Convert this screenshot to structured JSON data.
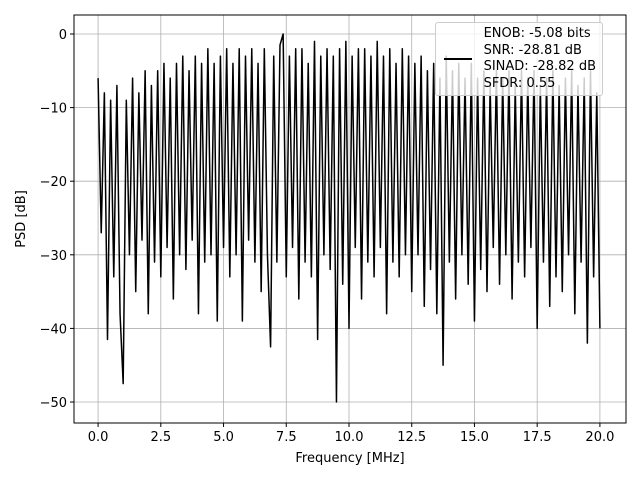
{
  "chart_data": {
    "type": "line",
    "xlabel": "Frequency [MHz]",
    "ylabel": "PSD [dB]",
    "x": [
      0,
      0.125,
      0.25,
      0.375,
      0.5,
      0.625,
      0.75,
      0.875,
      1,
      1.125,
      1.25,
      1.375,
      1.5,
      1.625,
      1.75,
      1.875,
      2,
      2.125,
      2.25,
      2.375,
      2.5,
      2.625,
      2.75,
      2.875,
      3,
      3.125,
      3.25,
      3.375,
      3.5,
      3.625,
      3.75,
      3.875,
      4,
      4.125,
      4.25,
      4.375,
      4.5,
      4.625,
      4.75,
      4.875,
      5,
      5.125,
      5.25,
      5.375,
      5.5,
      5.625,
      5.75,
      5.875,
      6,
      6.125,
      6.25,
      6.375,
      6.5,
      6.625,
      6.75,
      6.875,
      7,
      7.125,
      7.25,
      7.375,
      7.5,
      7.625,
      7.75,
      7.875,
      8,
      8.125,
      8.25,
      8.375,
      8.5,
      8.625,
      8.75,
      8.875,
      9,
      9.125,
      9.25,
      9.375,
      9.5,
      9.625,
      9.75,
      9.875,
      10,
      10.125,
      10.25,
      10.375,
      10.5,
      10.625,
      10.75,
      10.875,
      11,
      11.125,
      11.25,
      11.375,
      11.5,
      11.625,
      11.75,
      11.875,
      12,
      12.125,
      12.25,
      12.375,
      12.5,
      12.625,
      12.75,
      12.875,
      13,
      13.125,
      13.25,
      13.375,
      13.5,
      13.625,
      13.75,
      13.875,
      14,
      14.125,
      14.25,
      14.375,
      14.5,
      14.625,
      14.75,
      14.875,
      15,
      15.125,
      15.25,
      15.375,
      15.5,
      15.625,
      15.75,
      15.875,
      16,
      16.125,
      16.25,
      16.375,
      16.5,
      16.625,
      16.75,
      16.875,
      17,
      17.125,
      17.25,
      17.375,
      17.5,
      17.625,
      17.75,
      17.875,
      18,
      18.125,
      18.25,
      18.375,
      18.5,
      18.625,
      18.75,
      18.875,
      19,
      19.125,
      19.25,
      19.375,
      19.5,
      19.625,
      19.75,
      19.875,
      20
    ],
    "series": [
      {
        "name": "ENOB: -5.08 bits\nSNR: -28.81 dB\nSINAD: -28.82 dB\nSFDR: 0.55",
        "color": "#000000",
        "values": [
          -6,
          -27,
          -8,
          -41.5,
          -9,
          -33,
          -7,
          -38,
          -47.5,
          -9,
          -30,
          -6,
          -35,
          -8,
          -28,
          -5,
          -38,
          -7,
          -31,
          -5,
          -33,
          -4,
          -29,
          -6,
          -36,
          -4,
          -30,
          -3,
          -32,
          -5,
          -28,
          -3,
          -38,
          -4,
          -31,
          -2,
          -30,
          -4,
          -39,
          -3,
          -29,
          -2,
          -33,
          -4,
          -30,
          -2,
          -39,
          -3,
          -28,
          -2,
          -31,
          -4,
          -35,
          -2,
          -30,
          -42.5,
          -3,
          -31,
          -1.5,
          0,
          -33,
          -3,
          -29,
          -2,
          -36,
          -2,
          -31,
          -4,
          -33,
          -1,
          -41.5,
          -3,
          -30,
          -2,
          -32,
          -3,
          -50,
          -2,
          -34,
          -1,
          -40,
          -3,
          -29,
          -2,
          -36,
          -2,
          -31,
          -3,
          -33,
          -1,
          -29,
          -3,
          -38,
          -2,
          -31,
          -4,
          -33,
          -2,
          -30,
          -3,
          -35,
          -4,
          -30,
          -3,
          -37,
          -5,
          -32,
          -4,
          -38,
          -6,
          -45,
          -3,
          -31,
          -5,
          -36,
          -4,
          -30,
          -6,
          -34,
          -4,
          -39,
          -6,
          -32,
          -5,
          -35,
          -7,
          -29,
          -5,
          -34,
          -6,
          -30,
          -5,
          -36,
          -7,
          -31,
          -5,
          -33,
          -6,
          -29,
          -5,
          -40,
          -7,
          -31,
          -6,
          -37,
          -5,
          -33,
          -7,
          -35,
          -6,
          -30,
          -5,
          -38,
          -7,
          -31,
          -6,
          -42,
          -5,
          -33,
          -8,
          -40
        ]
      }
    ],
    "xlim": [
      -0.96,
      21.04
    ],
    "ylim": [
      -52.85,
      2.58
    ],
    "xticks": [
      {
        "value": 0,
        "label": "0.0"
      },
      2.5,
      {
        "value": 5,
        "label": "5.0"
      },
      7.5,
      {
        "value": 10,
        "label": "10.0"
      },
      12.5,
      {
        "value": 15,
        "label": "15.0"
      },
      17.5,
      {
        "value": 20,
        "label": "20.0"
      }
    ],
    "yticks": [
      {
        "value": -50,
        "label": "−50"
      },
      {
        "value": -40,
        "label": "−40"
      },
      {
        "value": -30,
        "label": "−30"
      },
      {
        "value": -20,
        "label": "−20"
      },
      {
        "value": -10,
        "label": "−10"
      },
      0
    ],
    "grid": true,
    "legend": "upper right"
  }
}
